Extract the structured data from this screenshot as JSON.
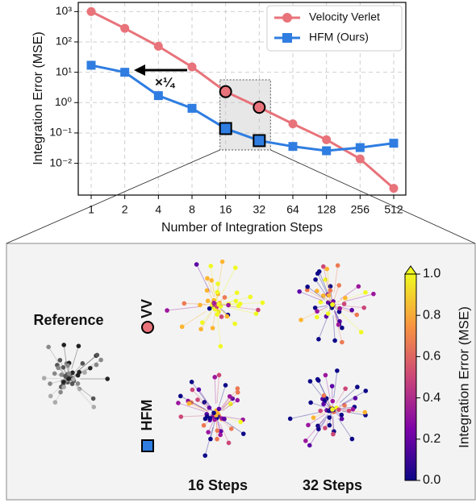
{
  "chart_data": {
    "type": "line",
    "x_label": "Number of Integration Steps",
    "y_label": "Integration Error (MSE)",
    "categories": [
      "1",
      "2",
      "4",
      "8",
      "16",
      "32",
      "64",
      "128",
      "256",
      "512"
    ],
    "series": [
      {
        "name": "Velocity Verlet",
        "color": "#e8737a",
        "marker": "circle",
        "values": [
          1000,
          280,
          72,
          15,
          2.3,
          0.7,
          0.2,
          0.06,
          0.014,
          0.0015
        ]
      },
      {
        "name": "HFM (Ours)",
        "color": "#2f7de1",
        "marker": "square",
        "values": [
          17,
          10,
          1.7,
          0.65,
          0.14,
          0.056,
          0.036,
          0.026,
          0.033,
          0.046
        ]
      }
    ],
    "y_log": true,
    "ylim": [
      0.0009,
      2000
    ],
    "yticks": [
      {
        "value": 1000,
        "label": "10³"
      },
      {
        "value": 100,
        "label": "10²"
      },
      {
        "value": 10,
        "label": "10¹"
      },
      {
        "value": 1,
        "label": "10⁰"
      },
      {
        "value": 0.1,
        "label": "10⁻¹"
      },
      {
        "value": 0.01,
        "label": "10⁻²"
      }
    ],
    "grid": true,
    "legend": "upper right",
    "annotation": "×¼"
  },
  "panel": {
    "reference": "Reference",
    "rows": [
      "VV",
      "HFM"
    ],
    "columns": [
      "16 Steps",
      "32 Steps"
    ],
    "colorbar": {
      "label": "Integration Error (MSE)",
      "lim": [
        0,
        1
      ],
      "ticks": [
        {
          "value": 0,
          "label": "0.0"
        },
        {
          "value": 0.2,
          "label": "0.2"
        },
        {
          "value": 0.4,
          "label": "0.4"
        },
        {
          "value": 0.6,
          "label": "0.6"
        },
        {
          "value": 0.8,
          "label": "0.8"
        },
        {
          "value": 1,
          "label": "1.0"
        }
      ]
    }
  }
}
